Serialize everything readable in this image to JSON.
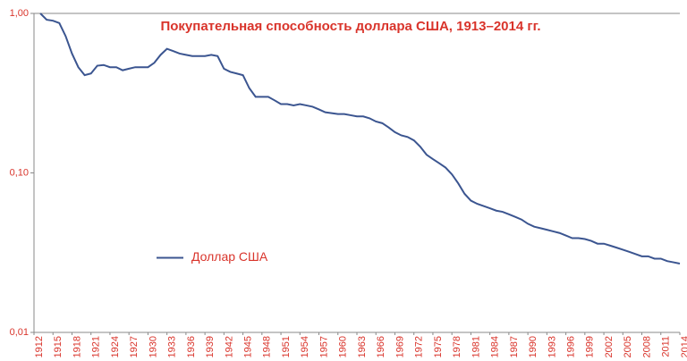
{
  "chart_data": {
    "type": "line",
    "title": "Покупательная способность доллара США, 1913–2014 гг.",
    "x": [
      1913,
      1914,
      1915,
      1916,
      1917,
      1918,
      1919,
      1920,
      1921,
      1922,
      1923,
      1924,
      1925,
      1926,
      1927,
      1928,
      1929,
      1930,
      1931,
      1932,
      1933,
      1934,
      1935,
      1936,
      1937,
      1938,
      1939,
      1940,
      1941,
      1942,
      1943,
      1944,
      1945,
      1946,
      1947,
      1948,
      1949,
      1950,
      1951,
      1952,
      1953,
      1954,
      1955,
      1956,
      1957,
      1958,
      1959,
      1960,
      1961,
      1962,
      1963,
      1964,
      1965,
      1966,
      1967,
      1968,
      1969,
      1970,
      1971,
      1972,
      1973,
      1974,
      1975,
      1976,
      1977,
      1978,
      1979,
      1980,
      1981,
      1982,
      1983,
      1984,
      1985,
      1986,
      1987,
      1988,
      1989,
      1990,
      1991,
      1992,
      1993,
      1994,
      1995,
      1996,
      1997,
      1998,
      1999,
      2000,
      2001,
      2002,
      2003,
      2004,
      2005,
      2006,
      2007,
      2008,
      2009,
      2010,
      2011,
      2012,
      2013,
      2014
    ],
    "series": [
      {
        "name": "Доллар США",
        "color": "#3b5590",
        "values": [
          1.0,
          0.913,
          0.9,
          0.87,
          0.72,
          0.56,
          0.46,
          0.41,
          0.42,
          0.47,
          0.475,
          0.46,
          0.46,
          0.44,
          0.45,
          0.46,
          0.46,
          0.46,
          0.49,
          0.55,
          0.6,
          0.58,
          0.56,
          0.55,
          0.54,
          0.54,
          0.54,
          0.55,
          0.54,
          0.45,
          0.43,
          0.42,
          0.41,
          0.34,
          0.3,
          0.3,
          0.3,
          0.285,
          0.27,
          0.27,
          0.265,
          0.27,
          0.265,
          0.26,
          0.25,
          0.24,
          0.237,
          0.234,
          0.234,
          0.23,
          0.226,
          0.226,
          0.22,
          0.21,
          0.205,
          0.193,
          0.18,
          0.172,
          0.168,
          0.16,
          0.146,
          0.13,
          0.122,
          0.115,
          0.108,
          0.098,
          0.086,
          0.074,
          0.067,
          0.064,
          0.062,
          0.06,
          0.058,
          0.057,
          0.055,
          0.053,
          0.051,
          0.048,
          0.046,
          0.045,
          0.044,
          0.043,
          0.042,
          0.0405,
          0.039,
          0.039,
          0.0385,
          0.0375,
          0.036,
          0.036,
          0.035,
          0.034,
          0.033,
          0.032,
          0.031,
          0.03,
          0.03,
          0.029,
          0.029,
          0.028,
          0.0275,
          0.027
        ]
      }
    ],
    "xlim": [
      1912,
      2014
    ],
    "xticks": [
      1912,
      1915,
      1918,
      1921,
      1924,
      1927,
      1930,
      1933,
      1936,
      1939,
      1942,
      1945,
      1948,
      1951,
      1954,
      1957,
      1960,
      1963,
      1966,
      1969,
      1972,
      1975,
      1978,
      1981,
      1984,
      1987,
      1990,
      1993,
      1996,
      1999,
      2002,
      2005,
      2008,
      2011,
      2014
    ],
    "ylim": [
      0.01,
      1
    ],
    "yticks": [
      {
        "value": 0.01,
        "label": "0,01"
      },
      {
        "value": 0.1,
        "label": "0,10"
      },
      {
        "value": 1,
        "label": "1,00"
      }
    ],
    "log_y": true,
    "legend": "center-left"
  }
}
